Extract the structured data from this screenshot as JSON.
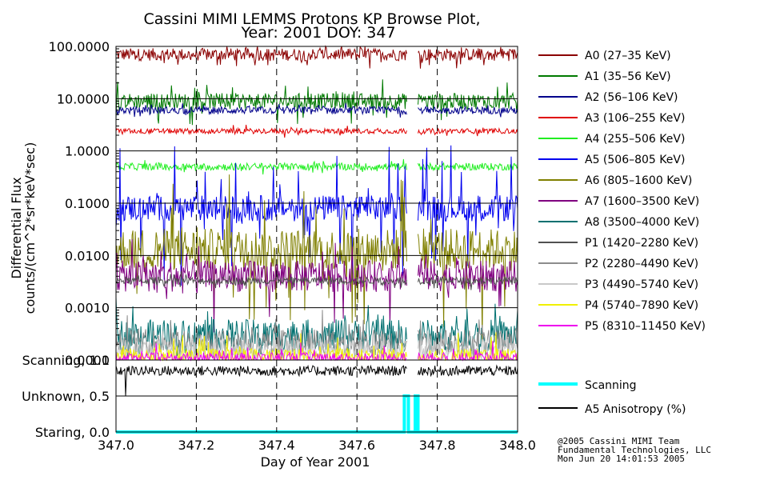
{
  "title_line1": "Cassini MIMI LEMMS Protons KP Browse Plot,",
  "title_line2": "Year: 2001 DOY: 347",
  "credits": [
    "@2005 Cassini MIMI Team",
    "Fundamental Technologies, LLC",
    "Mon Jun 20 14:01:53 2005"
  ],
  "chart_data": [
    {
      "type": "line",
      "title": "Cassini MIMI LEMMS Protons KP Browse Plot, Year: 2001 DOY: 347",
      "ylabel_line1": "Differential Flux",
      "ylabel_line2": "counts/(cm^2*sr*keV*sec)",
      "xlim": [
        347.0,
        348.0
      ],
      "ylim": [
        0.0001,
        100.0
      ],
      "yscale": "log",
      "grid": true,
      "legend": "right",
      "x_ticks": [
        "347.0",
        "347.2",
        "347.4",
        "347.6",
        "347.8",
        "348.0"
      ],
      "y_ticks": [
        {
          "value": 100,
          "label": "100.0000"
        },
        {
          "value": 10,
          "label": "10.0000"
        },
        {
          "value": 1,
          "label": "1.0000"
        },
        {
          "value": 0.1,
          "label": "0.1000"
        },
        {
          "value": 0.01,
          "label": "0.0100"
        },
        {
          "value": 0.001,
          "label": "0.0010"
        },
        {
          "value": 0.0001,
          "label": "0.0001"
        }
      ],
      "data_gap": [
        347.725,
        347.752
      ],
      "series": [
        {
          "name": "A0 (27–35 KeV)",
          "color": "#8b0000",
          "level": 70,
          "spread": 0.12,
          "spike": 0.2
        },
        {
          "name": "A1 (35–56 KeV)",
          "color": "#007a00",
          "level": 9,
          "spread": 0.15,
          "spike": 0.35
        },
        {
          "name": "A2 (56–106 KeV)",
          "color": "#00008b",
          "level": 6,
          "spread": 0.07,
          "spike": 0.1
        },
        {
          "name": "A3 (106–255 KeV)",
          "color": "#e00000",
          "level": 2.4,
          "spread": 0.05,
          "spike": 0.08
        },
        {
          "name": "A4 (255–506 KeV)",
          "color": "#22ee22",
          "level": 0.5,
          "spread": 0.07,
          "spike": 0.1
        },
        {
          "name": "A5 (506–805 KeV)",
          "color": "#0000ee",
          "level": 0.08,
          "spread": 0.25,
          "spike": 1.2
        },
        {
          "name": "A6 (805–1600 KeV)",
          "color": "#808000",
          "level": 0.013,
          "spread": 0.4,
          "spike": 1.5
        },
        {
          "name": "A7 (1600–3500 KeV)",
          "color": "#800080",
          "level": 0.004,
          "spread": 0.3,
          "spike": 0.8
        },
        {
          "name": "A8 (3500–4000 KeV)",
          "color": "#007070",
          "level": 0.0003,
          "spread": 0.3,
          "spike": 0.5
        },
        {
          "name": "P1 (1420–2280 KeV)",
          "color": "#505050",
          "level": 0.0033,
          "spread": 0.07,
          "spike": 0.15
        },
        {
          "name": "P2 (2280–4490 KeV)",
          "color": "#8c8c8c",
          "level": 0.00022,
          "spread": 0.25,
          "spike": 0.5
        },
        {
          "name": "P3 (4490–5740 KeV)",
          "color": "#c8c8c8",
          "level": 0.00016,
          "spread": 0.2,
          "spike": 0.4
        },
        {
          "name": "P4 (5740–7890 KeV)",
          "color": "#f0f000",
          "level": 0.00012,
          "spread": 0.15,
          "spike": 0.4
        },
        {
          "name": "P5 (8310–11450 KeV)",
          "color": "#ee00ee",
          "level": 0.00011,
          "spread": 0.1,
          "spike": 0.3
        }
      ]
    },
    {
      "type": "line",
      "xlabel": "Day of Year 2001",
      "xlim": [
        347.0,
        348.0
      ],
      "ylim": [
        0.0,
        1.0
      ],
      "y_ticks": [
        {
          "value": 1.0,
          "label": "Scanning, 1.0"
        },
        {
          "value": 0.5,
          "label": "Unknown, 0.5"
        },
        {
          "value": 0.0,
          "label": "Staring, 0.0"
        }
      ],
      "x_ticks": [
        "347.0",
        "347.2",
        "347.4",
        "347.6",
        "347.8",
        "348.0"
      ],
      "legend": "right",
      "series": [
        {
          "name": "Scanning",
          "color": "#00ffff",
          "x": [
            347.0,
            347.718,
            347.718,
            347.728,
            347.728,
            347.745,
            347.745,
            347.752,
            347.752,
            348.0
          ],
          "y": [
            0.0,
            0.0,
            0.5,
            0.5,
            0.0,
            0.0,
            0.5,
            0.5,
            0.0,
            0.0
          ]
        },
        {
          "name": "A5 Anisotropy (%)",
          "color": "#000000",
          "level": 0.85,
          "spread": 0.07
        }
      ]
    }
  ]
}
